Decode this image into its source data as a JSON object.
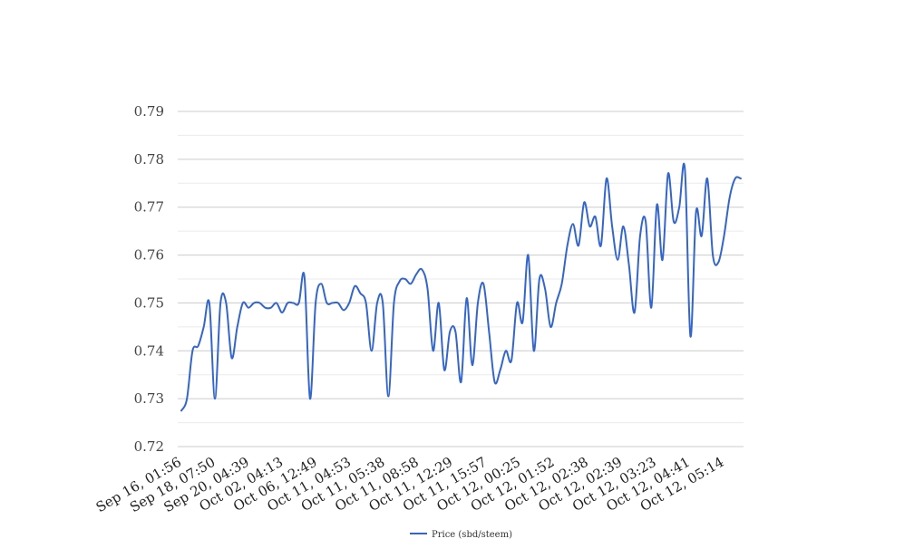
{
  "chart_data": {
    "type": "line",
    "title": "",
    "xlabel": "",
    "ylabel": "",
    "ylim": [
      0.72,
      0.79
    ],
    "yticks": [
      "0.72",
      "0.73",
      "0.74",
      "0.75",
      "0.76",
      "0.77",
      "0.78",
      "0.79"
    ],
    "grid": true,
    "legend_position": "bottom",
    "line_color": "#3366cc",
    "x_tick_labels": [
      "Sep 16, 01:56",
      "Sep 18, 07:50",
      "Sep 20, 04:39",
      "Oct 02, 04:13",
      "Oct 06, 12:49",
      "Oct 11, 04:53",
      "Oct 11, 05:38",
      "Oct 11, 08:58",
      "Oct 11, 12:29",
      "Oct 11, 15:57",
      "Oct 12, 00:25",
      "Oct 12, 01:52",
      "Oct 12, 02:38",
      "Oct 12, 02:39",
      "Oct 12, 03:23",
      "Oct 12, 04:41",
      "Oct 12, 05:14"
    ],
    "series": [
      {
        "name": "Price (sbd/steem)",
        "values": [
          0.7275,
          0.73,
          0.74,
          0.741,
          0.745,
          0.75,
          0.73,
          0.75,
          0.75,
          0.7385,
          0.745,
          0.75,
          0.749,
          0.75,
          0.75,
          0.749,
          0.749,
          0.75,
          0.748,
          0.75,
          0.75,
          0.75,
          0.7555,
          0.73,
          0.75,
          0.754,
          0.75,
          0.75,
          0.75,
          0.7485,
          0.75,
          0.7535,
          0.752,
          0.75,
          0.74,
          0.75,
          0.75,
          0.7305,
          0.75,
          0.7545,
          0.755,
          0.754,
          0.756,
          0.757,
          0.753,
          0.74,
          0.75,
          0.736,
          0.744,
          0.744,
          0.7335,
          0.751,
          0.737,
          0.75,
          0.754,
          0.744,
          0.7335,
          0.736,
          0.74,
          0.738,
          0.75,
          0.746,
          0.76,
          0.74,
          0.755,
          0.753,
          0.745,
          0.75,
          0.754,
          0.762,
          0.7665,
          0.762,
          0.771,
          0.766,
          0.768,
          0.762,
          0.776,
          0.766,
          0.759,
          0.766,
          0.758,
          0.748,
          0.764,
          0.767,
          0.749,
          0.7705,
          0.759,
          0.777,
          0.767,
          0.77,
          0.778,
          0.743,
          0.769,
          0.764,
          0.776,
          0.76,
          0.7585,
          0.764,
          0.772,
          0.776,
          0.776
        ]
      }
    ]
  }
}
